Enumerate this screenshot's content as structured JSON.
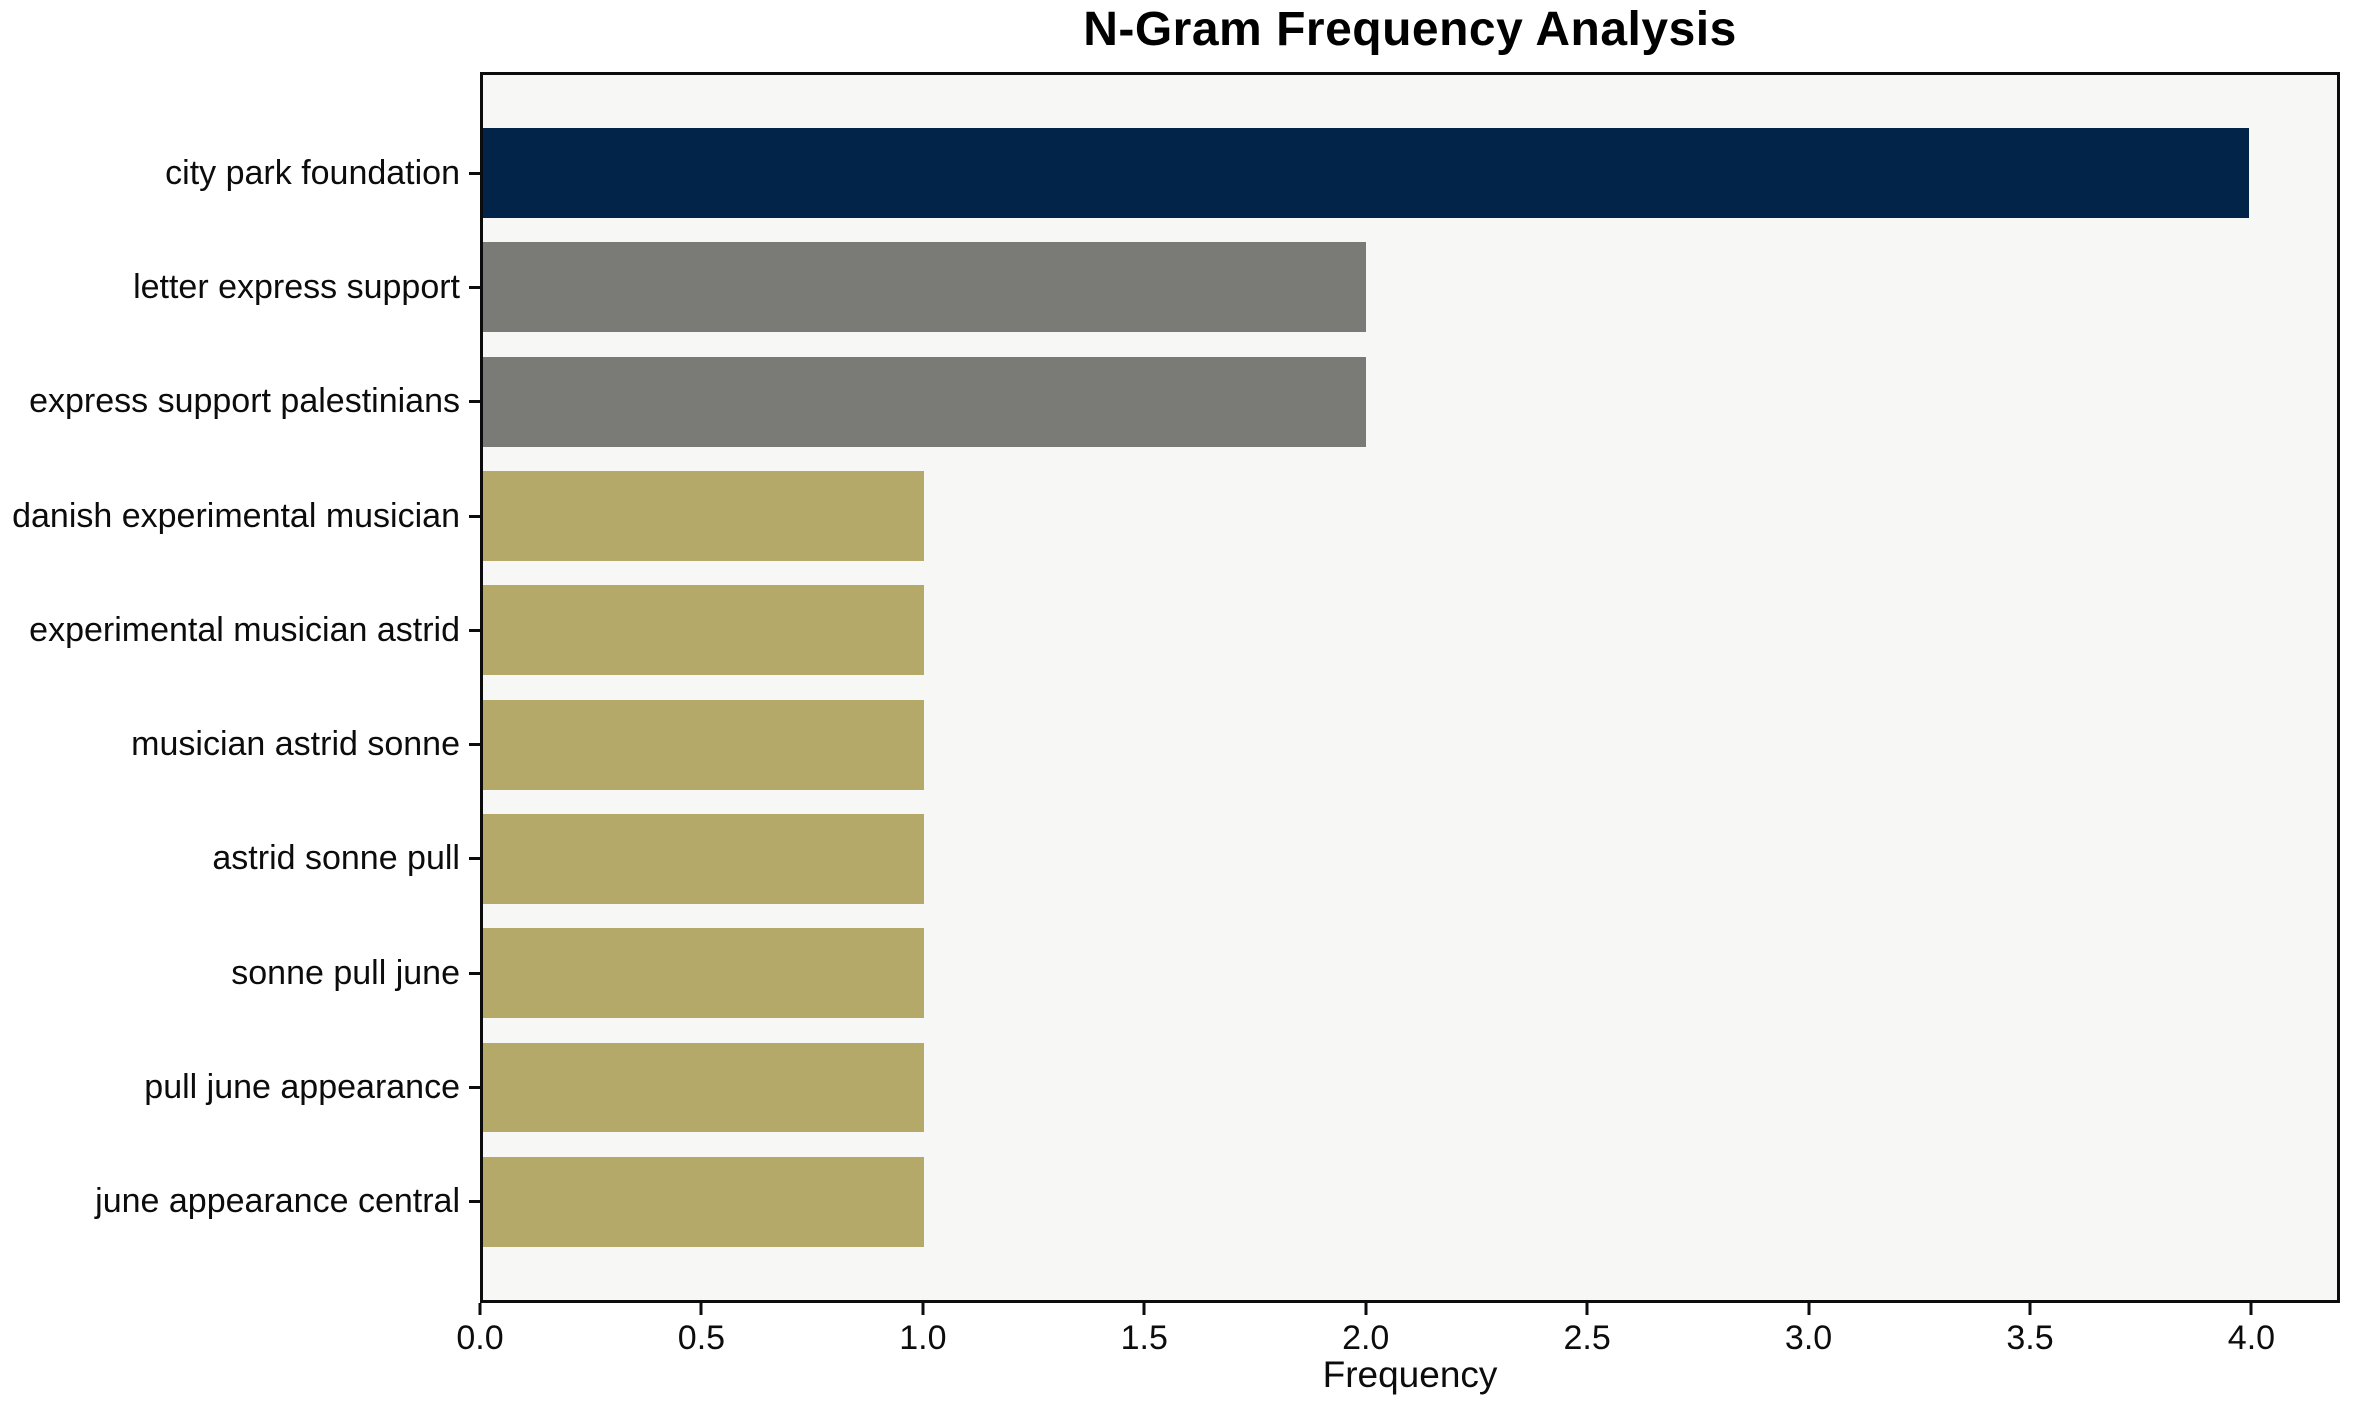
{
  "chart_data": {
    "type": "bar",
    "orientation": "horizontal",
    "title": "N-Gram Frequency Analysis",
    "xlabel": "Frequency",
    "ylabel": "",
    "categories": [
      "city park foundation",
      "letter express support",
      "express support palestinians",
      "danish experimental musician",
      "experimental musician astrid",
      "musician astrid sonne",
      "astrid sonne pull",
      "sonne pull june",
      "pull june appearance",
      "june appearance central"
    ],
    "values": [
      4,
      2,
      2,
      1,
      1,
      1,
      1,
      1,
      1,
      1
    ],
    "bar_colors": [
      "#032449",
      "#7a7a76",
      "#7a7a76",
      "#b5a969",
      "#b5a969",
      "#b5a969",
      "#b5a969",
      "#b5a969",
      "#b5a969",
      "#b5a969"
    ],
    "xlim": [
      0,
      4.2
    ],
    "xticks": [
      0.0,
      0.5,
      1.0,
      1.5,
      2.0,
      2.5,
      3.0,
      3.5,
      4.0
    ],
    "xtick_labels": [
      "0.0",
      "0.5",
      "1.0",
      "1.5",
      "2.0",
      "2.5",
      "3.0",
      "3.5",
      "4.0"
    ],
    "grid": false,
    "legend_position": "none",
    "plot_background": "#f7f7f5",
    "figure_background": "#ffffff",
    "spine_color": "#0c0c0c"
  }
}
